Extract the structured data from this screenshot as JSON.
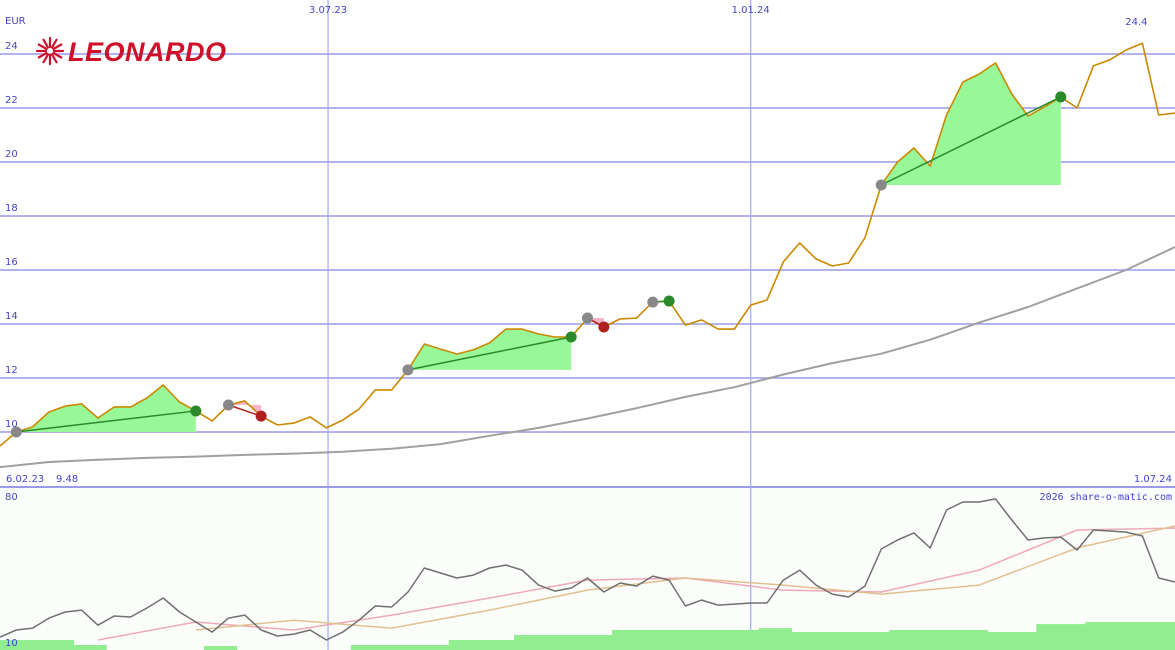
{
  "chart_data": [
    {
      "type": "line",
      "title": "LEONARDO",
      "unit": "EUR",
      "credit": "2026 share-o-matic.com",
      "xlim": [
        0,
        72
      ],
      "xticks": [
        {
          "value": 0,
          "label": "6.02.23"
        },
        {
          "value": 20.1,
          "label": "3.07.23"
        },
        {
          "value": 46,
          "label": "1.01.24"
        },
        {
          "value": 72,
          "label": "1.07.24"
        }
      ],
      "ylim": [
        8,
        26
      ],
      "yticks": [
        10,
        12,
        14,
        16,
        18,
        20,
        22,
        24
      ],
      "grid": true,
      "series": [
        {
          "color": "#cc8800",
          "values": [
            9.48,
            10.0,
            10.19,
            10.74,
            10.96,
            11.04,
            10.52,
            10.93,
            10.93,
            11.26,
            11.74,
            11.11,
            10.78,
            10.41,
            11.0,
            11.15,
            10.59,
            10.26,
            10.33,
            10.56,
            10.15,
            10.44,
            10.85,
            11.56,
            11.56,
            12.3,
            13.26,
            13.07,
            12.89,
            13.04,
            13.3,
            13.81,
            13.81,
            13.63,
            13.52,
            13.52,
            14.22,
            13.89,
            14.19,
            14.22,
            14.81,
            14.85,
            13.96,
            14.15,
            13.81,
            13.81,
            14.7,
            14.89,
            16.3,
            17.0,
            16.41,
            16.15,
            16.26,
            17.19,
            19.15,
            20.0,
            20.52,
            19.85,
            21.74,
            22.96,
            23.26,
            23.67,
            22.52,
            21.7,
            22.04,
            22.41,
            22.0,
            23.56,
            23.78,
            24.15,
            24.4,
            21.74,
            21.81
          ]
        },
        {
          "color": "#a0a0a0",
          "x": [
            0,
            3,
            6,
            9,
            12,
            15,
            18,
            21,
            24,
            27,
            30,
            33,
            36,
            39,
            42,
            45,
            48,
            51,
            54,
            57,
            60,
            63,
            66,
            69,
            72
          ],
          "values": [
            8.7,
            8.89,
            8.97,
            9.04,
            9.09,
            9.15,
            9.2,
            9.27,
            9.38,
            9.55,
            9.86,
            10.15,
            10.5,
            10.88,
            11.3,
            11.66,
            12.13,
            12.55,
            12.9,
            13.42,
            14.05,
            14.63,
            15.32,
            16.0,
            16.85
          ]
        }
      ],
      "signals": [
        {
          "start": 1,
          "end": 12,
          "color": "#2a8a2a",
          "fill": "#98f898"
        },
        {
          "start": 14,
          "end": 16,
          "color": "#b02020",
          "fill": "#f8b4c4"
        },
        {
          "start": 25,
          "end": 35,
          "color": "#2a8a2a",
          "fill": "#98f898"
        },
        {
          "start": 36,
          "end": 37,
          "color": "#b02020",
          "fill": "#f8b4c4"
        },
        {
          "start": 40,
          "end": 41,
          "color": "#2a8a2a",
          "fill": "#98f898"
        },
        {
          "start": 54,
          "end": 65,
          "color": "#2a8a2a",
          "fill": "#98f898"
        }
      ]
    },
    {
      "type": "line",
      "xlim": [
        0,
        72
      ],
      "ylim": [
        6.2,
        84.3
      ],
      "yticks": [
        10,
        80
      ],
      "series": [
        {
          "color": "#707070",
          "values": [
            12.4,
            15.8,
            16.7,
            21.5,
            24.4,
            25.3,
            18.1,
            22.5,
            22.0,
            26.3,
            31.1,
            24.4,
            19.6,
            14.8,
            21.5,
            22.9,
            15.8,
            12.9,
            13.8,
            15.8,
            11.0,
            14.8,
            20.5,
            27.3,
            26.8,
            34.0,
            45.5,
            43.1,
            40.7,
            42.1,
            45.5,
            46.9,
            44.5,
            37.3,
            34.4,
            35.9,
            40.7,
            34.0,
            38.3,
            36.8,
            41.6,
            39.7,
            27.3,
            30.1,
            27.7,
            28.2,
            28.7,
            28.7,
            39.7,
            44.5,
            37.3,
            33.0,
            31.6,
            36.8,
            54.6,
            58.9,
            62.3,
            55.1,
            73.3,
            77.1,
            77.1,
            78.6,
            68.5,
            58.9,
            59.9,
            60.3,
            54.1,
            63.7,
            63.2,
            62.7,
            60.8,
            40.7,
            38.8
          ]
        },
        {
          "color": "#f0a8b8",
          "x": [
            0,
            6,
            12,
            18,
            24,
            30,
            36,
            42,
            48,
            54,
            60,
            66,
            72
          ],
          "values": [
            null,
            11.0,
            19.6,
            15.8,
            22.9,
            31.1,
            39.7,
            40.7,
            34.9,
            34.0,
            44.5,
            63.7,
            64.6
          ]
        },
        {
          "color": "#e0c090",
          "x": [
            0,
            6,
            12,
            18,
            24,
            30,
            36,
            42,
            48,
            54,
            60,
            66,
            72
          ],
          "values": [
            null,
            null,
            15.8,
            20.5,
            16.7,
            25.3,
            34.9,
            40.7,
            37.3,
            33.0,
            37.3,
            55.1,
            65.6
          ]
        }
      ],
      "volume": {
        "color": "#90ee90",
        "values": [
          11.0,
          11.0,
          11.0,
          11.0,
          11.0,
          8.6,
          8.6,
          null,
          null,
          null,
          null,
          null,
          null,
          8.1,
          8.1,
          null,
          null,
          null,
          null,
          null,
          null,
          null,
          8.6,
          8.6,
          8.6,
          8.6,
          8.6,
          8.6,
          11.0,
          11.0,
          11.0,
          11.0,
          13.4,
          13.4,
          13.4,
          13.4,
          13.4,
          13.4,
          15.8,
          15.8,
          15.8,
          15.8,
          15.8,
          15.8,
          15.8,
          15.8,
          15.8,
          16.7,
          16.7,
          14.8,
          14.8,
          14.8,
          14.8,
          14.8,
          14.8,
          15.8,
          15.8,
          15.8,
          15.8,
          15.8,
          15.8,
          14.8,
          14.8,
          14.8,
          18.6,
          18.6,
          18.6,
          19.6,
          19.6,
          19.6,
          19.6,
          19.6,
          19.6
        ]
      }
    }
  ]
}
